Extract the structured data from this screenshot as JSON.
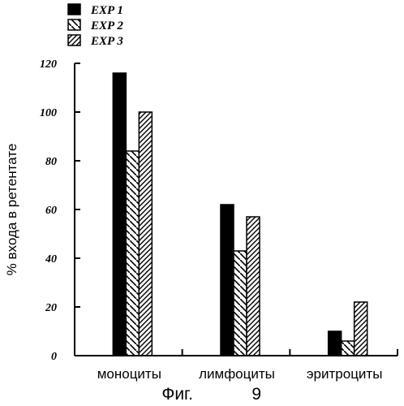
{
  "chart_data": {
    "type": "bar",
    "categories": [
      "моноциты",
      "лимфоциты",
      "эритроциты"
    ],
    "series": [
      {
        "name": "EXP 1",
        "values": [
          116,
          62,
          10
        ]
      },
      {
        "name": "EXP 2",
        "values": [
          84,
          43,
          6
        ]
      },
      {
        "name": "EXP 3",
        "values": [
          100,
          57,
          22
        ]
      }
    ],
    "ylabel": "% входа в ретентате",
    "xlabel": "",
    "ylim": [
      0,
      120
    ],
    "yticks": [
      0,
      20,
      40,
      60,
      80,
      100,
      120
    ],
    "grid": false,
    "legend_position": "top-left"
  },
  "caption": {
    "word": "Фиг.",
    "number": "9"
  }
}
